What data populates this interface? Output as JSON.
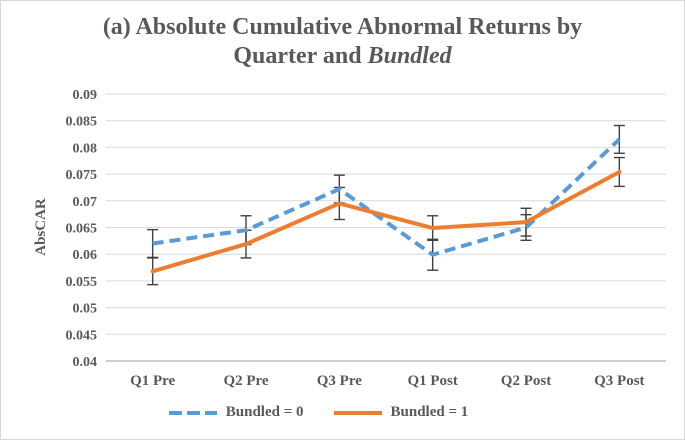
{
  "figure": {
    "background": "#ffffff",
    "border_color": "#d6d6d6"
  },
  "title": {
    "line1": "(a) Absolute Cumulative Abnormal Returns by",
    "line2_prefix": "Quarter and ",
    "line2_italic": "Bundled"
  },
  "chart_data": {
    "type": "line",
    "title": "(a) Absolute Cumulative Abnormal Returns by Quarter and Bundled",
    "categories": [
      "Q1 Pre",
      "Q2 Pre",
      "Q3 Pre",
      "Q1 Post",
      "Q2 Post",
      "Q3 Post"
    ],
    "series": [
      {
        "name": "Bundled = 0",
        "color": "#5B9BD5",
        "line_style": "dashed",
        "values": [
          0.062,
          0.0645,
          0.0722,
          0.0599,
          0.065,
          0.0815
        ],
        "error_bars": [
          0.0026,
          0.0027,
          0.0026,
          0.0029,
          0.0024,
          0.0026
        ]
      },
      {
        "name": "Bundled = 1",
        "color": "#ED7D31",
        "line_style": "solid",
        "values": [
          0.0568,
          0.0619,
          0.0695,
          0.0649,
          0.066,
          0.0754
        ],
        "error_bars": [
          0.0025,
          0.0026,
          0.003,
          0.0023,
          0.0026,
          0.0027
        ]
      }
    ],
    "xlabel": "",
    "ylabel": "AbsCAR",
    "ylim": [
      0.04,
      0.09
    ],
    "ytick_step": 0.005,
    "ytick_labels": [
      "0.09",
      "0.085",
      "0.08",
      "0.075",
      "0.07",
      "0.065",
      "0.06",
      "0.055",
      "0.05",
      "0.045",
      "0.04"
    ],
    "grid": true,
    "legend_position": "bottom",
    "colors": {
      "text": "#595959",
      "gridline": "#D9D9D9",
      "axis_line": "#BFBFBF",
      "error_bar": "#404040"
    }
  }
}
